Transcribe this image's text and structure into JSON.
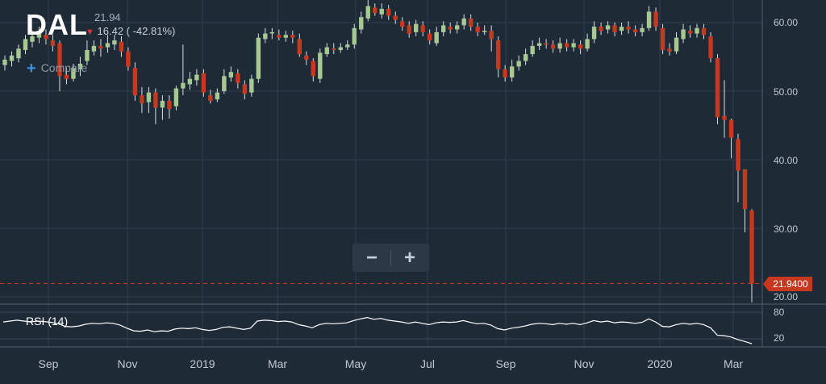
{
  "header": {
    "ticker": "DAL",
    "price": "21.94",
    "change": "16.42 ( -42.81%)",
    "compare_label": "Compare"
  },
  "zoom": {
    "minus": "−",
    "plus": "+"
  },
  "rsi": {
    "label": "RSI (14)",
    "ticks": [
      "80",
      "20"
    ]
  },
  "last_price_label": "21.9400",
  "colors": {
    "background": "#1f2a37",
    "up": "#a5c990",
    "down": "#c8381f",
    "rsi_line": "#ffffff",
    "grid": "#2f3d4c"
  },
  "icons": {
    "change_direction": "down-arrow-icon",
    "compare": "plus-icon"
  },
  "chart_data": {
    "type": "candlestick",
    "title": "DAL",
    "y_ticks": [
      "20.00",
      "30.00",
      "40.00",
      "50.00",
      "60.00"
    ],
    "ylim": [
      18.5,
      64
    ],
    "x_ticks": [
      {
        "label": "Sep",
        "i": 4
      },
      {
        "label": "Nov",
        "i": 12
      },
      {
        "label": "2019",
        "i": 20
      },
      {
        "label": "Mar",
        "i": 28
      },
      {
        "label": "May",
        "i": 36
      },
      {
        "label": "Jul",
        "i": 43
      },
      {
        "label": "Sep",
        "i": 51
      },
      {
        "label": "Nov",
        "i": 59
      },
      {
        "label": "2020",
        "i": 67
      },
      {
        "label": "Mar",
        "i": 75
      }
    ],
    "last_price": 21.94,
    "candles": [
      [
        53.8,
        54.6,
        53.0,
        55.2
      ],
      [
        54.4,
        55.2,
        53.6,
        55.8
      ],
      [
        54.8,
        56.2,
        54.2,
        56.8
      ],
      [
        56.0,
        57.6,
        55.4,
        58.2
      ],
      [
        57.2,
        58.0,
        56.4,
        58.8
      ],
      [
        57.8,
        58.8,
        57.0,
        59.4
      ],
      [
        58.2,
        57.6,
        56.8,
        59.0
      ],
      [
        57.4,
        56.6,
        55.8,
        58.2
      ],
      [
        57.0,
        52.2,
        50.0,
        57.4
      ],
      [
        52.4,
        51.8,
        51.0,
        53.4
      ],
      [
        51.8,
        53.4,
        51.4,
        54.0
      ],
      [
        53.2,
        54.0,
        52.2,
        55.0
      ],
      [
        54.4,
        56.0,
        53.8,
        57.4
      ],
      [
        55.8,
        56.6,
        55.2,
        57.4
      ],
      [
        56.6,
        56.2,
        55.0,
        57.6
      ],
      [
        56.4,
        57.0,
        55.6,
        58.2
      ],
      [
        56.8,
        57.4,
        56.0,
        58.2
      ],
      [
        57.2,
        55.8,
        55.0,
        58.0
      ],
      [
        55.8,
        53.6,
        53.0,
        56.4
      ],
      [
        53.4,
        49.4,
        48.6,
        54.2
      ],
      [
        49.4,
        48.2,
        46.8,
        50.6
      ],
      [
        48.4,
        49.8,
        46.8,
        50.6
      ],
      [
        49.8,
        47.6,
        45.2,
        50.4
      ],
      [
        47.6,
        48.6,
        45.8,
        49.4
      ],
      [
        48.6,
        47.4,
        46.0,
        49.4
      ],
      [
        47.8,
        50.4,
        47.2,
        50.8
      ],
      [
        50.4,
        51.2,
        49.4,
        56.8
      ],
      [
        51.0,
        51.8,
        50.2,
        52.8
      ],
      [
        51.6,
        52.4,
        50.8,
        53.2
      ],
      [
        52.6,
        49.8,
        49.2,
        53.2
      ],
      [
        49.4,
        48.6,
        48.2,
        50.2
      ],
      [
        48.8,
        49.8,
        48.4,
        50.4
      ],
      [
        50.0,
        52.2,
        49.6,
        53.2
      ],
      [
        52.0,
        52.8,
        51.4,
        53.6
      ],
      [
        52.6,
        51.2,
        50.4,
        53.2
      ],
      [
        51.0,
        49.6,
        48.8,
        51.6
      ],
      [
        49.8,
        51.8,
        49.2,
        52.4
      ],
      [
        51.8,
        57.8,
        51.2,
        58.4
      ],
      [
        57.6,
        58.4,
        57.0,
        59.2
      ],
      [
        58.4,
        58.6,
        57.6,
        59.2
      ],
      [
        58.2,
        57.8,
        57.4,
        59.0
      ],
      [
        57.8,
        58.2,
        57.2,
        58.8
      ],
      [
        58.2,
        57.8,
        57.0,
        58.8
      ],
      [
        57.6,
        55.4,
        55.0,
        58.4
      ],
      [
        55.2,
        54.6,
        53.8,
        55.8
      ],
      [
        54.4,
        52.2,
        51.4,
        54.8
      ],
      [
        51.8,
        55.6,
        51.2,
        56.2
      ],
      [
        55.4,
        56.4,
        55.0,
        57.0
      ],
      [
        56.2,
        56.0,
        55.4,
        57.0
      ],
      [
        56.0,
        56.4,
        55.6,
        57.0
      ],
      [
        56.4,
        56.8,
        56.0,
        57.4
      ],
      [
        56.8,
        59.2,
        56.2,
        59.8
      ],
      [
        59.0,
        60.8,
        58.4,
        61.6
      ],
      [
        60.6,
        62.4,
        60.2,
        63.6
      ],
      [
        62.2,
        61.4,
        61.0,
        62.8
      ],
      [
        61.2,
        62.0,
        60.6,
        62.8
      ],
      [
        62.0,
        61.0,
        60.4,
        62.6
      ],
      [
        61.0,
        60.4,
        59.8,
        61.6
      ],
      [
        60.2,
        59.4,
        58.8,
        60.8
      ],
      [
        59.6,
        58.4,
        57.8,
        60.2
      ],
      [
        58.6,
        59.8,
        58.0,
        60.4
      ],
      [
        59.6,
        58.6,
        58.0,
        60.2
      ],
      [
        58.4,
        57.4,
        56.8,
        59.0
      ],
      [
        57.0,
        58.6,
        56.6,
        59.4
      ],
      [
        58.6,
        59.6,
        58.0,
        60.2
      ],
      [
        59.4,
        59.0,
        58.4,
        60.0
      ],
      [
        59.0,
        59.6,
        58.4,
        60.2
      ],
      [
        59.6,
        60.6,
        59.0,
        61.2
      ],
      [
        60.6,
        59.4,
        58.8,
        61.2
      ],
      [
        59.4,
        58.6,
        58.0,
        60.0
      ],
      [
        58.6,
        58.8,
        58.2,
        59.6
      ],
      [
        58.8,
        57.6,
        55.8,
        59.6
      ],
      [
        57.4,
        53.2,
        52.0,
        58.0
      ],
      [
        53.2,
        52.0,
        51.4,
        53.8
      ],
      [
        52.0,
        53.6,
        51.4,
        54.6
      ],
      [
        53.6,
        54.4,
        53.0,
        55.2
      ],
      [
        54.4,
        55.4,
        53.8,
        56.2
      ],
      [
        55.4,
        56.6,
        55.0,
        57.4
      ],
      [
        56.6,
        57.0,
        56.0,
        57.8
      ],
      [
        57.0,
        56.8,
        56.2,
        57.6
      ],
      [
        56.8,
        56.2,
        55.6,
        57.4
      ],
      [
        56.2,
        57.0,
        55.6,
        57.8
      ],
      [
        57.0,
        56.4,
        55.8,
        57.6
      ],
      [
        56.4,
        57.0,
        55.8,
        57.6
      ],
      [
        56.8,
        56.2,
        55.4,
        57.4
      ],
      [
        56.2,
        57.6,
        55.8,
        58.4
      ],
      [
        57.6,
        59.4,
        57.0,
        60.2
      ],
      [
        59.4,
        58.8,
        58.2,
        60.0
      ],
      [
        59.0,
        59.6,
        58.4,
        60.2
      ],
      [
        59.6,
        58.6,
        58.0,
        60.0
      ],
      [
        58.8,
        59.4,
        58.2,
        60.0
      ],
      [
        59.4,
        59.0,
        58.4,
        60.2
      ],
      [
        59.0,
        58.6,
        58.0,
        59.6
      ],
      [
        58.6,
        59.2,
        58.0,
        59.8
      ],
      [
        59.2,
        61.6,
        58.8,
        62.4
      ],
      [
        61.6,
        59.4,
        58.8,
        62.2
      ],
      [
        59.2,
        56.0,
        55.4,
        59.8
      ],
      [
        56.2,
        55.8,
        55.2,
        57.0
      ],
      [
        55.8,
        57.8,
        55.4,
        58.6
      ],
      [
        57.6,
        59.0,
        57.0,
        59.8
      ],
      [
        58.8,
        58.4,
        57.8,
        59.6
      ],
      [
        58.4,
        59.2,
        57.8,
        59.8
      ],
      [
        59.2,
        58.2,
        57.6,
        59.8
      ],
      [
        58.0,
        54.8,
        54.2,
        58.6
      ],
      [
        54.8,
        46.2,
        45.2,
        55.4
      ],
      [
        46.4,
        45.8,
        43.2,
        51.6
      ],
      [
        45.8,
        43.2,
        40.2,
        46.0
      ],
      [
        43.0,
        38.4,
        33.8,
        43.8
      ],
      [
        38.6,
        32.8,
        29.4,
        38.6
      ],
      [
        32.6,
        21.94,
        19.2,
        32.8
      ]
    ],
    "rsi": [
      58,
      60,
      62,
      60,
      58,
      60,
      59,
      57,
      54,
      48,
      47,
      49,
      53,
      55,
      54,
      56,
      55,
      51,
      44,
      38,
      37,
      40,
      36,
      38,
      37,
      42,
      44,
      43,
      45,
      41,
      39,
      41,
      46,
      47,
      44,
      41,
      44,
      60,
      62,
      61,
      59,
      60,
      58,
      52,
      49,
      45,
      52,
      55,
      54,
      55,
      56,
      61,
      65,
      68,
      64,
      66,
      62,
      60,
      58,
      55,
      58,
      55,
      52,
      56,
      58,
      57,
      58,
      61,
      57,
      54,
      55,
      51,
      43,
      40,
      44,
      46,
      49,
      53,
      55,
      54,
      52,
      55,
      53,
      55,
      52,
      56,
      61,
      58,
      60,
      56,
      58,
      57,
      55,
      57,
      65,
      58,
      48,
      47,
      52,
      55,
      53,
      55,
      52,
      45,
      28,
      27,
      24,
      18,
      14,
      9
    ]
  }
}
